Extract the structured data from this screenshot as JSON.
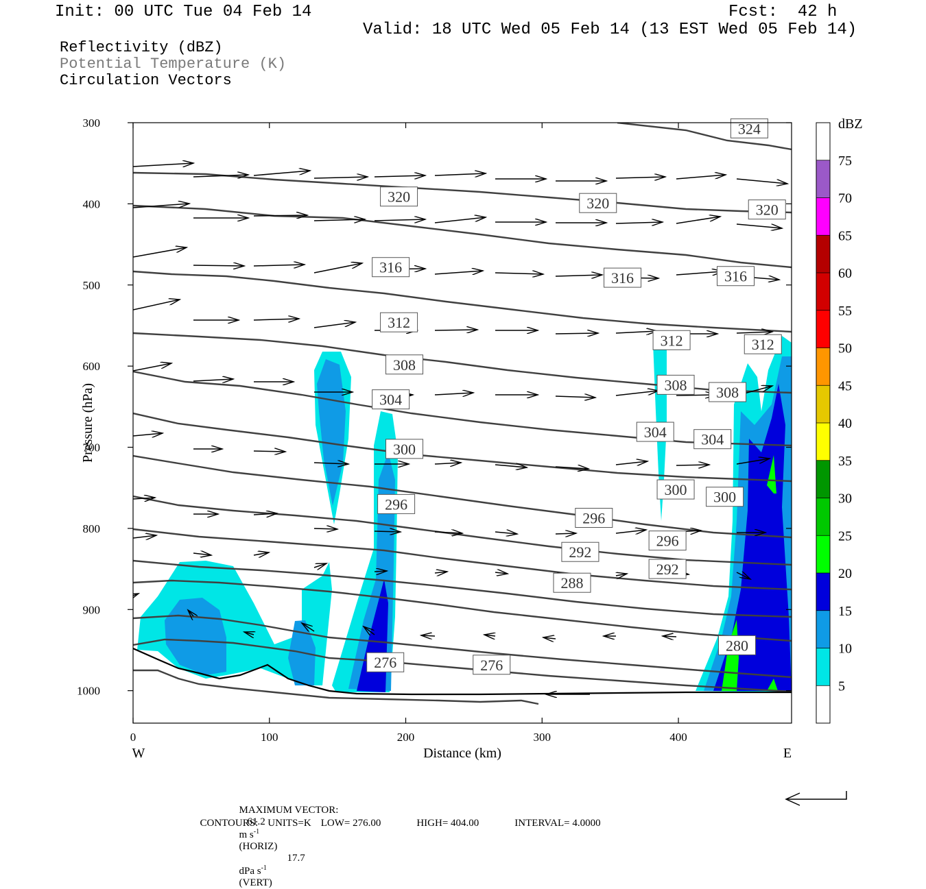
{
  "header": {
    "init": "Init: 00 UTC Tue 04 Feb 14",
    "fcst": "Fcst:  42 h",
    "valid": "Valid: 18 UTC Wed 05 Feb 14 (13 EST Wed 05 Feb 14)"
  },
  "fields": [
    "Reflectivity (dBZ)",
    "Potential Temperature (K)",
    "Circulation Vectors"
  ],
  "chart_data": {
    "type": "cross-section",
    "xlabel": "Distance (km)",
    "ylabel": "Pressure (hPa)",
    "x_ticks": [
      0,
      100,
      200,
      300,
      400
    ],
    "y_ticks": [
      300,
      400,
      500,
      600,
      700,
      800,
      900,
      1000
    ],
    "xlim": [
      0,
      483
    ],
    "ylim": [
      300,
      1040
    ],
    "west_label": "W",
    "east_label": "E",
    "colorbar": {
      "unit": "dBZ",
      "levels": [
        5,
        10,
        15,
        20,
        25,
        30,
        35,
        40,
        45,
        50,
        55,
        60,
        65,
        70,
        75
      ],
      "colors": [
        "#ffffff",
        "#00e6e6",
        "#0f9be6",
        "#0000dc",
        "#00ff00",
        "#00c800",
        "#009600",
        "#ffff00",
        "#e6c800",
        "#ff9600",
        "#ff0000",
        "#d20000",
        "#b40000",
        "#ff00ff",
        "#9b59c8",
        "#ffffff"
      ]
    },
    "theta_contours": [
      {
        "value": "324",
        "label": [
          452,
          307
        ]
      },
      {
        "value": "320",
        "label": [
          195,
          391
        ]
      },
      {
        "value": "320",
        "label": [
          341,
          399
        ]
      },
      {
        "value": "320",
        "label": [
          465,
          407
        ]
      },
      {
        "value": "316",
        "label": [
          189,
          478
        ]
      },
      {
        "value": "316",
        "label": [
          359,
          491
        ]
      },
      {
        "value": "316",
        "label": [
          442,
          489
        ]
      },
      {
        "value": "312",
        "label": [
          195,
          546
        ]
      },
      {
        "value": "312",
        "label": [
          395,
          568
        ]
      },
      {
        "value": "312",
        "label": [
          462,
          573
        ]
      },
      {
        "value": "308",
        "label": [
          199,
          598
        ]
      },
      {
        "value": "308",
        "label": [
          398,
          623
        ]
      },
      {
        "value": "308",
        "label": [
          436,
          632
        ]
      },
      {
        "value": "304",
        "label": [
          189,
          641
        ]
      },
      {
        "value": "304",
        "label": [
          383,
          681
        ]
      },
      {
        "value": "304",
        "label": [
          425,
          690
        ]
      },
      {
        "value": "300",
        "label": [
          199,
          702
        ]
      },
      {
        "value": "300",
        "label": [
          398,
          752
        ]
      },
      {
        "value": "300",
        "label": [
          434,
          761
        ]
      },
      {
        "value": "296",
        "label": [
          193,
          770
        ]
      },
      {
        "value": "296",
        "label": [
          338,
          787
        ]
      },
      {
        "value": "296",
        "label": [
          392,
          815
        ]
      },
      {
        "value": "292",
        "label": [
          328,
          829
        ]
      },
      {
        "value": "292",
        "label": [
          392,
          850
        ]
      },
      {
        "value": "288",
        "label": [
          322,
          867
        ]
      },
      {
        "value": "280",
        "label": [
          443,
          944
        ]
      },
      {
        "value": "276",
        "label": [
          185,
          965
        ]
      },
      {
        "value": "276",
        "label": [
          263,
          968
        ]
      }
    ],
    "max_vector": {
      "horiz": "61.2",
      "horiz_unit": "m s",
      "vert": "17.7",
      "vert_unit": "dPa s",
      "exp": "-1"
    },
    "contour_info": {
      "units": "K",
      "low": "276.00",
      "high": "404.00",
      "interval": "4.0000"
    }
  },
  "footer": {
    "maxvec_label": "MAXIMUM VECTOR:",
    "horiz_tag": "(HORIZ)",
    "vert_tag": "(VERT)",
    "contours_label": "CONTOURS:",
    "units_label": "UNITS=K",
    "low_label": "LOW=",
    "high_label": "HIGH=",
    "interval_label": "INTERVAL="
  }
}
